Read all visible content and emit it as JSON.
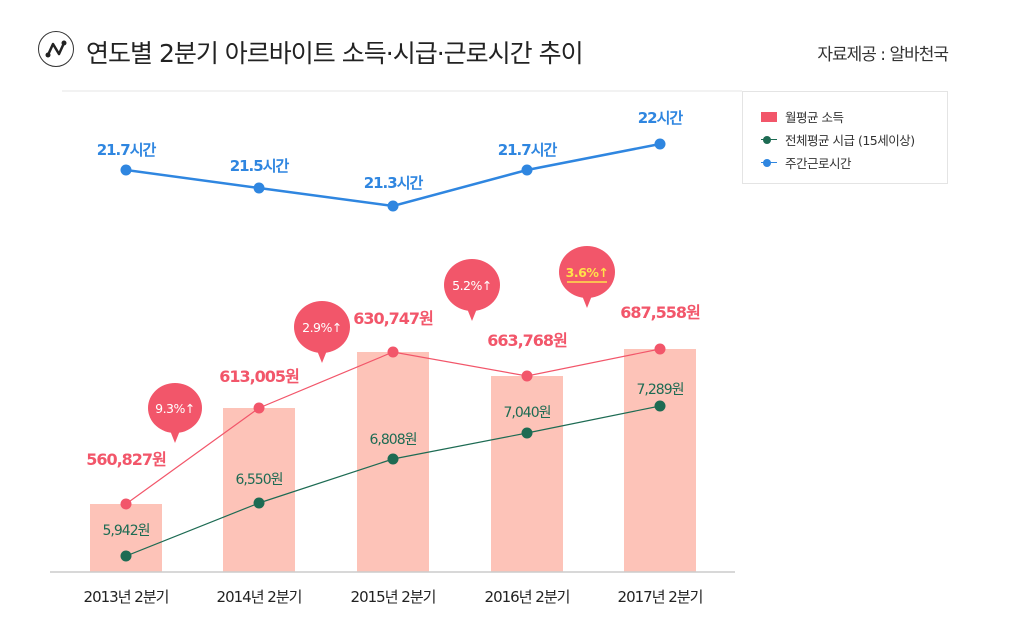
{
  "header": {
    "title": "연도별 2분기 아르바이트 소득·시급·근로시간 추이",
    "source": "자료제공 : 알바천국",
    "icon": "line-chart-icon"
  },
  "chart_data": {
    "type": "bar+line",
    "categories": [
      "2013년 2분기",
      "2014년 2분기",
      "2015년 2분기",
      "2016년 2분기",
      "2017년 2분기"
    ],
    "series": [
      {
        "name": "월평균 소득",
        "type": "bar+line",
        "color": "#f2566a",
        "bar_color": "#fdc3b8",
        "values": [
          560827,
          613005,
          630747,
          663768,
          687558
        ],
        "labels": [
          "560,827원",
          "613,005원",
          "630,747원",
          "663,768원",
          "687,558원"
        ]
      },
      {
        "name": "전체평균 시급 (15세이상)",
        "type": "line",
        "color": "#1d6b53",
        "values": [
          5942,
          6550,
          6808,
          7040,
          7289
        ],
        "labels": [
          "5,942원",
          "6,550원",
          "6,808원",
          "7,040원",
          "7,289원"
        ]
      },
      {
        "name": "주간근로시간",
        "type": "line",
        "color": "#2f86e0",
        "values": [
          21.7,
          21.5,
          21.3,
          21.7,
          22
        ],
        "labels": [
          "21.7시간",
          "21.5시간",
          "21.3시간",
          "21.7시간",
          "22시간"
        ]
      }
    ],
    "growth_bubbles": [
      "9.3%↑",
      "2.9%↑",
      "5.2%↑",
      "3.6%↑"
    ],
    "highlight_color": "#ffe14a",
    "legend": "top-right"
  }
}
